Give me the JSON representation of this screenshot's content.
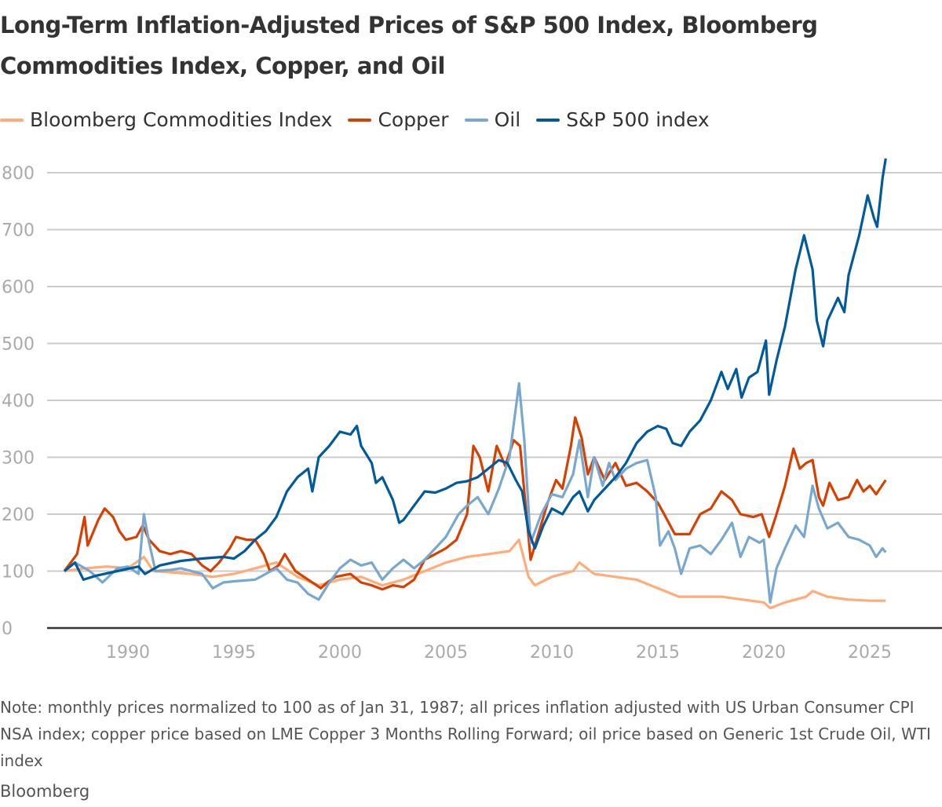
{
  "title": "Long-Term Inflation-Adjusted Prices of S&P 500 Index, Bloomberg Commodities Index, Copper, and Oil",
  "note": "Note: monthly prices normalized to 100 as of Jan 31, 1987; all prices inflation adjusted with US Urban Consumer CPI NSA index; copper price based on LME Copper 3 Months Rolling Forward; oil price based on Generic 1st Crude Oil, WTI index",
  "source": "Bloomberg",
  "chart_data": {
    "type": "line",
    "title": "Long-Term Inflation-Adjusted Prices of S&P 500 Index, Bloomberg Commodities Index, Copper, and Oil",
    "xlabel": "",
    "ylabel": "",
    "xlim": [
      1987,
      2025.8
    ],
    "ylim": [
      0,
      800
    ],
    "yticks": [
      0,
      100,
      200,
      300,
      400,
      500,
      600,
      700,
      800
    ],
    "xticks": [
      1990,
      1995,
      2000,
      2005,
      2010,
      2015,
      2020,
      2025
    ],
    "grid": "horizontal",
    "legend_placement": "top-left",
    "series": [
      {
        "name": "Bloomberg Commodities Index",
        "color": "#ffac78",
        "x": [
          1987,
          1988,
          1989,
          1990,
          1990.75,
          1991.2,
          1992,
          1993,
          1994,
          1995,
          1996,
          1997,
          1998,
          1999,
          2000,
          2001,
          2002,
          2003,
          2004,
          2005,
          2006,
          2007,
          2008,
          2008.45,
          2008.9,
          2009.2,
          2010,
          2011,
          2011.3,
          2012,
          2013,
          2014,
          2015,
          2016,
          2017,
          2018,
          2019,
          2020,
          2020.3,
          2021,
          2022,
          2022.3,
          2023,
          2024,
          2025,
          2025.75
        ],
        "y": [
          100,
          105,
          108,
          105,
          125,
          100,
          98,
          95,
          90,
          95,
          105,
          115,
          90,
          75,
          85,
          90,
          75,
          85,
          100,
          115,
          125,
          130,
          135,
          155,
          90,
          75,
          90,
          100,
          115,
          95,
          90,
          85,
          70,
          55,
          55,
          55,
          50,
          45,
          35,
          45,
          55,
          65,
          55,
          50,
          48,
          48
        ]
      },
      {
        "name": "Copper",
        "color": "#d64000",
        "x": [
          1987,
          1987.6,
          1987.95,
          1988.1,
          1988.6,
          1988.9,
          1989.3,
          1989.6,
          1989.9,
          1990.4,
          1990.7,
          1991,
          1991.5,
          1992,
          1992.5,
          1993,
          1993.5,
          1993.9,
          1994.3,
          1994.8,
          1995.1,
          1995.6,
          1996,
          1996.4,
          1996.7,
          1997.1,
          1997.4,
          1997.9,
          1998.3,
          1998.7,
          1999.1,
          1999.4,
          1999.8,
          2000.5,
          2001,
          2001.5,
          2002,
          2002.5,
          2003,
          2003.5,
          2004,
          2004.5,
          2005,
          2005.5,
          2006,
          2006.3,
          2006.6,
          2007,
          2007.4,
          2007.8,
          2008.2,
          2008.5,
          2008.8,
          2009,
          2009.4,
          2009.8,
          2010.2,
          2010.5,
          2010.9,
          2011.1,
          2011.4,
          2011.7,
          2012,
          2012.5,
          2013,
          2013.5,
          2014,
          2014.5,
          2015,
          2015.3,
          2015.8,
          2016.5,
          2017,
          2017.5,
          2018,
          2018.5,
          2018.9,
          2019.5,
          2019.9,
          2020.25,
          2020.6,
          2021,
          2021.4,
          2021.7,
          2022,
          2022.3,
          2022.6,
          2022.8,
          2023.1,
          2023.5,
          2024,
          2024.4,
          2024.7,
          2025,
          2025.3,
          2025.75
        ],
        "y": [
          100,
          130,
          195,
          145,
          190,
          210,
          195,
          170,
          155,
          160,
          180,
          155,
          135,
          130,
          135,
          130,
          110,
          100,
          115,
          140,
          160,
          155,
          155,
          130,
          100,
          110,
          130,
          100,
          90,
          80,
          70,
          80,
          90,
          95,
          80,
          75,
          68,
          75,
          72,
          85,
          120,
          130,
          140,
          155,
          200,
          320,
          300,
          240,
          320,
          285,
          330,
          320,
          200,
          120,
          170,
          220,
          260,
          245,
          320,
          370,
          335,
          270,
          300,
          260,
          290,
          250,
          255,
          240,
          220,
          200,
          165,
          165,
          200,
          210,
          240,
          225,
          200,
          195,
          200,
          160,
          200,
          250,
          315,
          280,
          290,
          295,
          230,
          215,
          255,
          225,
          230,
          260,
          240,
          250,
          235,
          260
        ]
      },
      {
        "name": "Oil",
        "color": "#78a8d0",
        "x": [
          1987,
          1987.5,
          1988.2,
          1988.8,
          1989.5,
          1990,
          1990.5,
          1990.75,
          1991,
          1991.3,
          1992,
          1992.5,
          1993.5,
          1994,
          1994.5,
          1995,
          1996,
          1996.5,
          1997,
          1997.5,
          1998,
          1998.5,
          1999,
          1999.5,
          2000,
          2000.5,
          2001,
          2001.5,
          2002,
          2002.5,
          2003,
          2003.5,
          2004,
          2004.5,
          2005,
          2005.6,
          2006,
          2006.5,
          2007,
          2007.5,
          2008,
          2008.45,
          2008.7,
          2009,
          2009.5,
          2010,
          2010.5,
          2011,
          2011.3,
          2011.7,
          2012,
          2012.4,
          2012.7,
          2013,
          2013.5,
          2014,
          2014.5,
          2014.9,
          2015.1,
          2015.5,
          2015.8,
          2016.1,
          2016.5,
          2017,
          2017.5,
          2018,
          2018.5,
          2018.9,
          2019.3,
          2019.8,
          2020,
          2020.3,
          2020.6,
          2021,
          2021.5,
          2021.9,
          2022.3,
          2022.6,
          2023,
          2023.5,
          2024,
          2024.5,
          2025,
          2025.3,
          2025.6,
          2025.75
        ],
        "y": [
          100,
          115,
          100,
          80,
          105,
          108,
          95,
          200,
          150,
          100,
          102,
          105,
          95,
          70,
          80,
          82,
          85,
          95,
          105,
          85,
          80,
          60,
          50,
          80,
          105,
          120,
          110,
          115,
          85,
          105,
          120,
          105,
          120,
          140,
          160,
          200,
          215,
          230,
          200,
          245,
          300,
          430,
          330,
          150,
          200,
          235,
          230,
          270,
          330,
          230,
          300,
          250,
          290,
          260,
          280,
          290,
          295,
          230,
          145,
          170,
          140,
          95,
          140,
          145,
          130,
          155,
          185,
          125,
          160,
          150,
          155,
          45,
          105,
          140,
          180,
          160,
          250,
          210,
          175,
          185,
          160,
          155,
          145,
          125,
          140,
          133
        ]
      },
      {
        "name": "S&P 500 index",
        "color": "#005a9c",
        "x": [
          1987,
          1987.5,
          1987.9,
          1988.5,
          1989.5,
          1990.5,
          1990.8,
          1991.5,
          1992.5,
          1993.5,
          1994.5,
          1995,
          1995.5,
          1996,
          1996.5,
          1997,
          1997.5,
          1998,
          1998.5,
          1998.7,
          1999,
          1999.5,
          2000,
          2000.5,
          2000.8,
          2001,
          2001.5,
          2001.7,
          2002,
          2002.5,
          2002.8,
          2003,
          2003.5,
          2004,
          2004.5,
          2005,
          2005.5,
          2006,
          2006.5,
          2007,
          2007.5,
          2007.9,
          2008.3,
          2008.6,
          2008.9,
          2009.2,
          2009.6,
          2010,
          2010.5,
          2011,
          2011.3,
          2011.7,
          2012,
          2012.5,
          2013,
          2013.5,
          2014,
          2014.5,
          2015,
          2015.4,
          2015.7,
          2016.1,
          2016.5,
          2017,
          2017.5,
          2018,
          2018.3,
          2018.7,
          2018.95,
          2019.3,
          2019.7,
          2020.1,
          2020.25,
          2020.6,
          2021,
          2021.5,
          2021.9,
          2022.3,
          2022.5,
          2022.8,
          2023,
          2023.5,
          2023.8,
          2024,
          2024.5,
          2024.9,
          2025.2,
          2025.35,
          2025.6,
          2025.75
        ],
        "y": [
          100,
          115,
          85,
          92,
          100,
          108,
          95,
          110,
          118,
          122,
          125,
          122,
          135,
          155,
          170,
          195,
          240,
          265,
          280,
          240,
          300,
          320,
          345,
          340,
          355,
          320,
          290,
          255,
          265,
          225,
          185,
          190,
          215,
          240,
          238,
          245,
          255,
          258,
          265,
          280,
          295,
          290,
          260,
          240,
          170,
          140,
          180,
          210,
          200,
          230,
          240,
          205,
          225,
          245,
          265,
          290,
          325,
          345,
          355,
          350,
          325,
          320,
          345,
          365,
          400,
          450,
          420,
          455,
          405,
          440,
          450,
          505,
          410,
          470,
          530,
          630,
          690,
          630,
          540,
          495,
          540,
          580,
          555,
          620,
          690,
          760,
          720,
          705,
          790,
          825
        ]
      }
    ]
  }
}
